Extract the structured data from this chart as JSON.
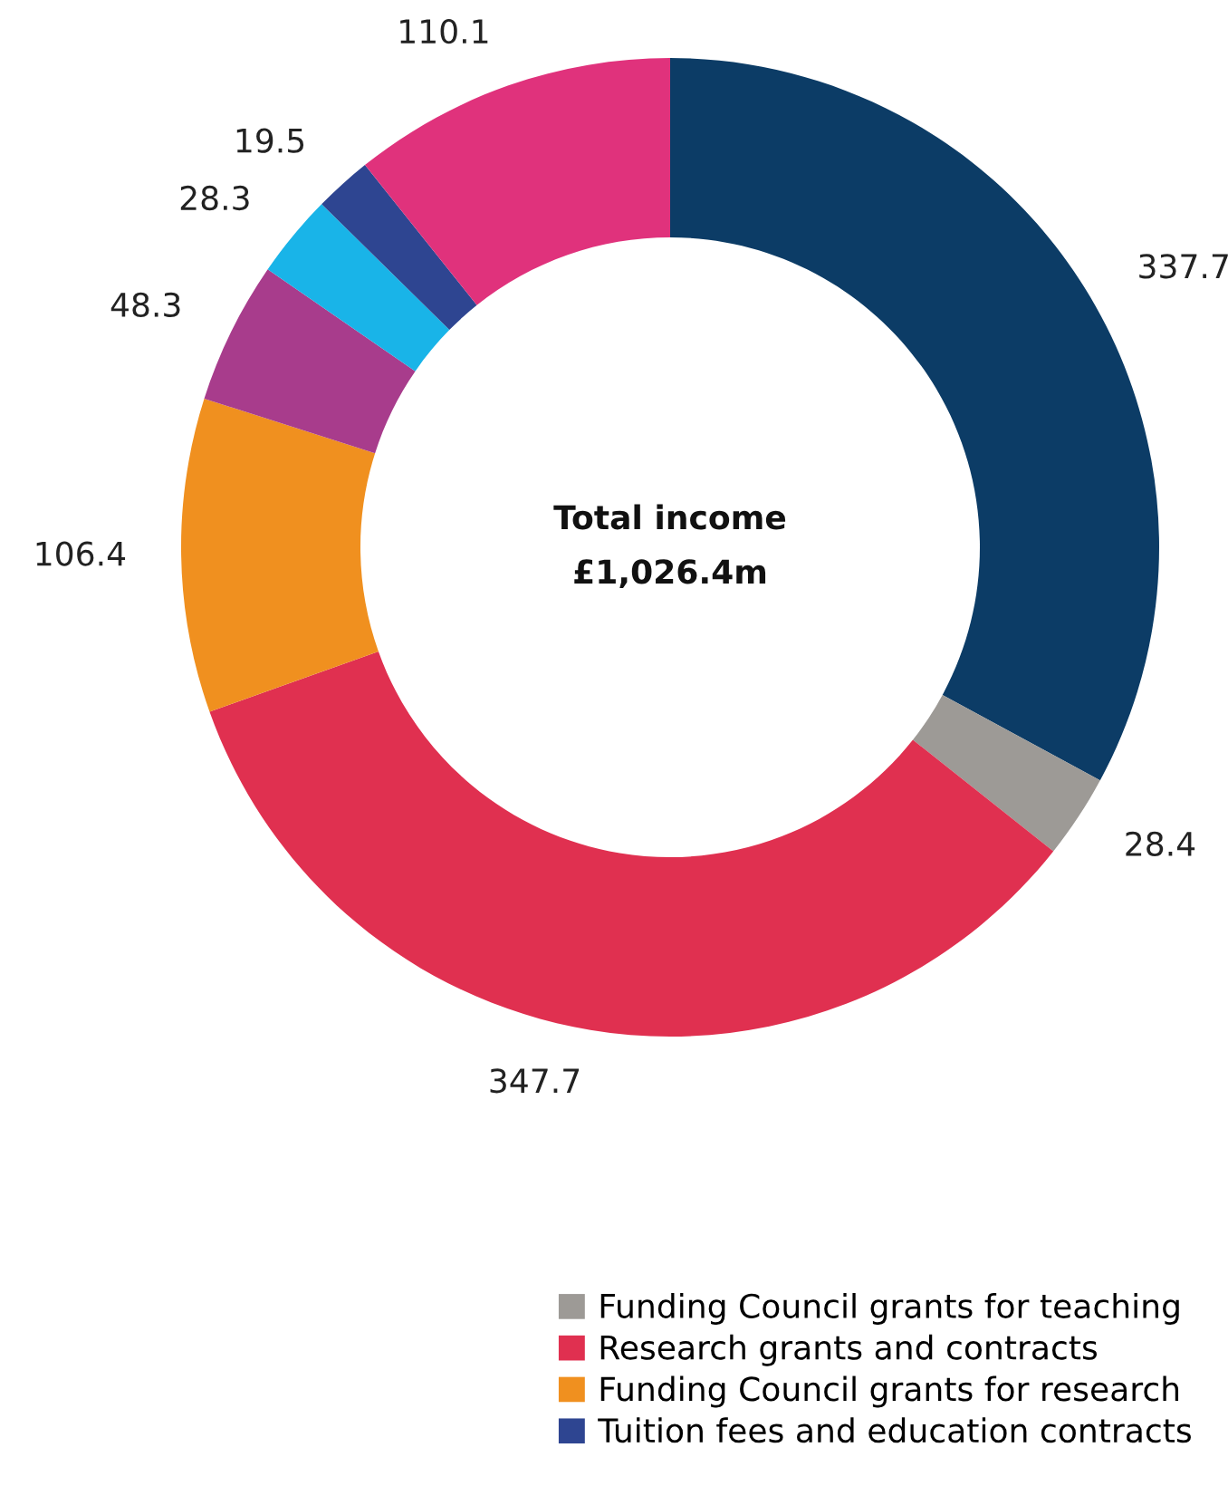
{
  "chart_data": {
    "type": "donut",
    "categories": [
      null,
      "Funding Council grants for teaching",
      "Research grants and contracts",
      "Funding Council grants for research",
      null,
      null,
      "Tuition fees and education contracts",
      null
    ],
    "values": [
      337.7,
      28.4,
      347.7,
      106.4,
      48.3,
      28.3,
      19.5,
      110.1
    ],
    "colors": [
      "#0c3c66",
      "#9d9a96",
      "#e03050",
      "#f0901f",
      "#a83c8c",
      "#19b4e8",
      "#2e4591",
      "#e0327c"
    ],
    "data_labels": true,
    "annotations": [
      "Total income",
      "£1,026.4m"
    ],
    "legend": "bottom right"
  }
}
